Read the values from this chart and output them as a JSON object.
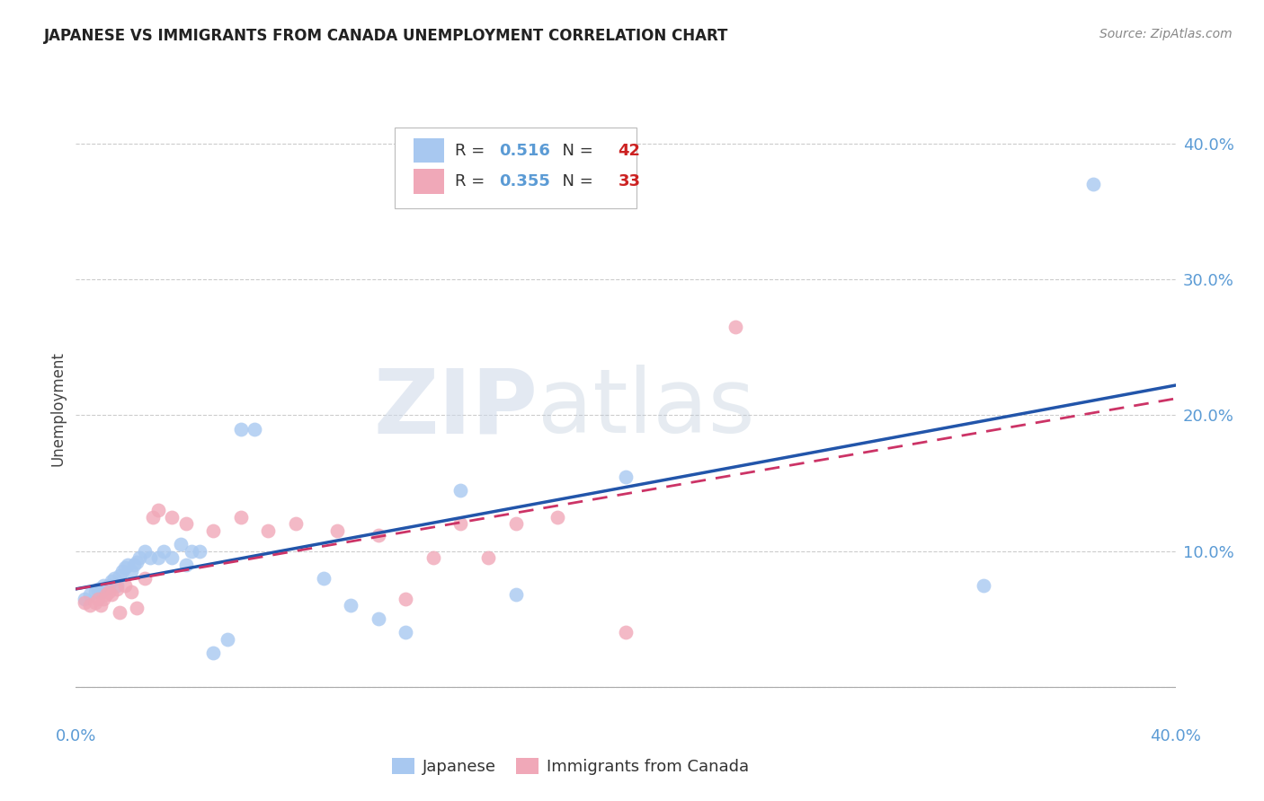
{
  "title": "JAPANESE VS IMMIGRANTS FROM CANADA UNEMPLOYMENT CORRELATION CHART",
  "source": "Source: ZipAtlas.com",
  "ylabel": "Unemployment",
  "watermark_zip": "ZIP",
  "watermark_atlas": "atlas",
  "R_japanese": 0.516,
  "N_japanese": 42,
  "R_canada": 0.355,
  "N_canada": 33,
  "xlim": [
    0.0,
    0.4
  ],
  "ylim": [
    -0.025,
    0.435
  ],
  "yticks": [
    0.0,
    0.1,
    0.2,
    0.3,
    0.4
  ],
  "ytick_labels": [
    "",
    "10.0%",
    "20.0%",
    "30.0%",
    "40.0%"
  ],
  "xticks": [
    0.0,
    0.1,
    0.2,
    0.3,
    0.4
  ],
  "xtick_labels": [
    "0.0%",
    "",
    "",
    "",
    "40.0%"
  ],
  "background_color": "#ffffff",
  "grid_color": "#cccccc",
  "japanese_color": "#a8c8f0",
  "canada_color": "#f0a8b8",
  "japanese_line_color": "#2255aa",
  "canada_line_color": "#cc3366",
  "tick_color": "#5b9bd5",
  "scatter_alpha": 0.8,
  "scatter_size": 130,
  "japanese_x": [
    0.003,
    0.005,
    0.007,
    0.008,
    0.009,
    0.01,
    0.01,
    0.011,
    0.012,
    0.013,
    0.014,
    0.015,
    0.016,
    0.017,
    0.018,
    0.019,
    0.02,
    0.021,
    0.022,
    0.023,
    0.025,
    0.027,
    0.03,
    0.032,
    0.035,
    0.038,
    0.04,
    0.042,
    0.045,
    0.05,
    0.055,
    0.06,
    0.065,
    0.09,
    0.1,
    0.11,
    0.12,
    0.14,
    0.16,
    0.2,
    0.33,
    0.37
  ],
  "japanese_y": [
    0.065,
    0.068,
    0.07,
    0.072,
    0.07,
    0.072,
    0.075,
    0.073,
    0.075,
    0.078,
    0.08,
    0.075,
    0.082,
    0.085,
    0.088,
    0.09,
    0.085,
    0.09,
    0.092,
    0.095,
    0.1,
    0.095,
    0.095,
    0.1,
    0.095,
    0.105,
    0.09,
    0.1,
    0.1,
    0.025,
    0.035,
    0.19,
    0.19,
    0.08,
    0.06,
    0.05,
    0.04,
    0.145,
    0.068,
    0.155,
    0.075,
    0.37
  ],
  "canada_x": [
    0.003,
    0.005,
    0.007,
    0.008,
    0.009,
    0.01,
    0.011,
    0.012,
    0.013,
    0.015,
    0.016,
    0.018,
    0.02,
    0.022,
    0.025,
    0.028,
    0.03,
    0.035,
    0.04,
    0.05,
    0.06,
    0.07,
    0.08,
    0.095,
    0.11,
    0.12,
    0.13,
    0.14,
    0.15,
    0.16,
    0.175,
    0.2,
    0.24
  ],
  "canada_y": [
    0.062,
    0.06,
    0.062,
    0.065,
    0.06,
    0.065,
    0.068,
    0.07,
    0.068,
    0.072,
    0.055,
    0.075,
    0.07,
    0.058,
    0.08,
    0.125,
    0.13,
    0.125,
    0.12,
    0.115,
    0.125,
    0.115,
    0.12,
    0.115,
    0.112,
    0.065,
    0.095,
    0.12,
    0.095,
    0.12,
    0.125,
    0.04,
    0.265
  ]
}
